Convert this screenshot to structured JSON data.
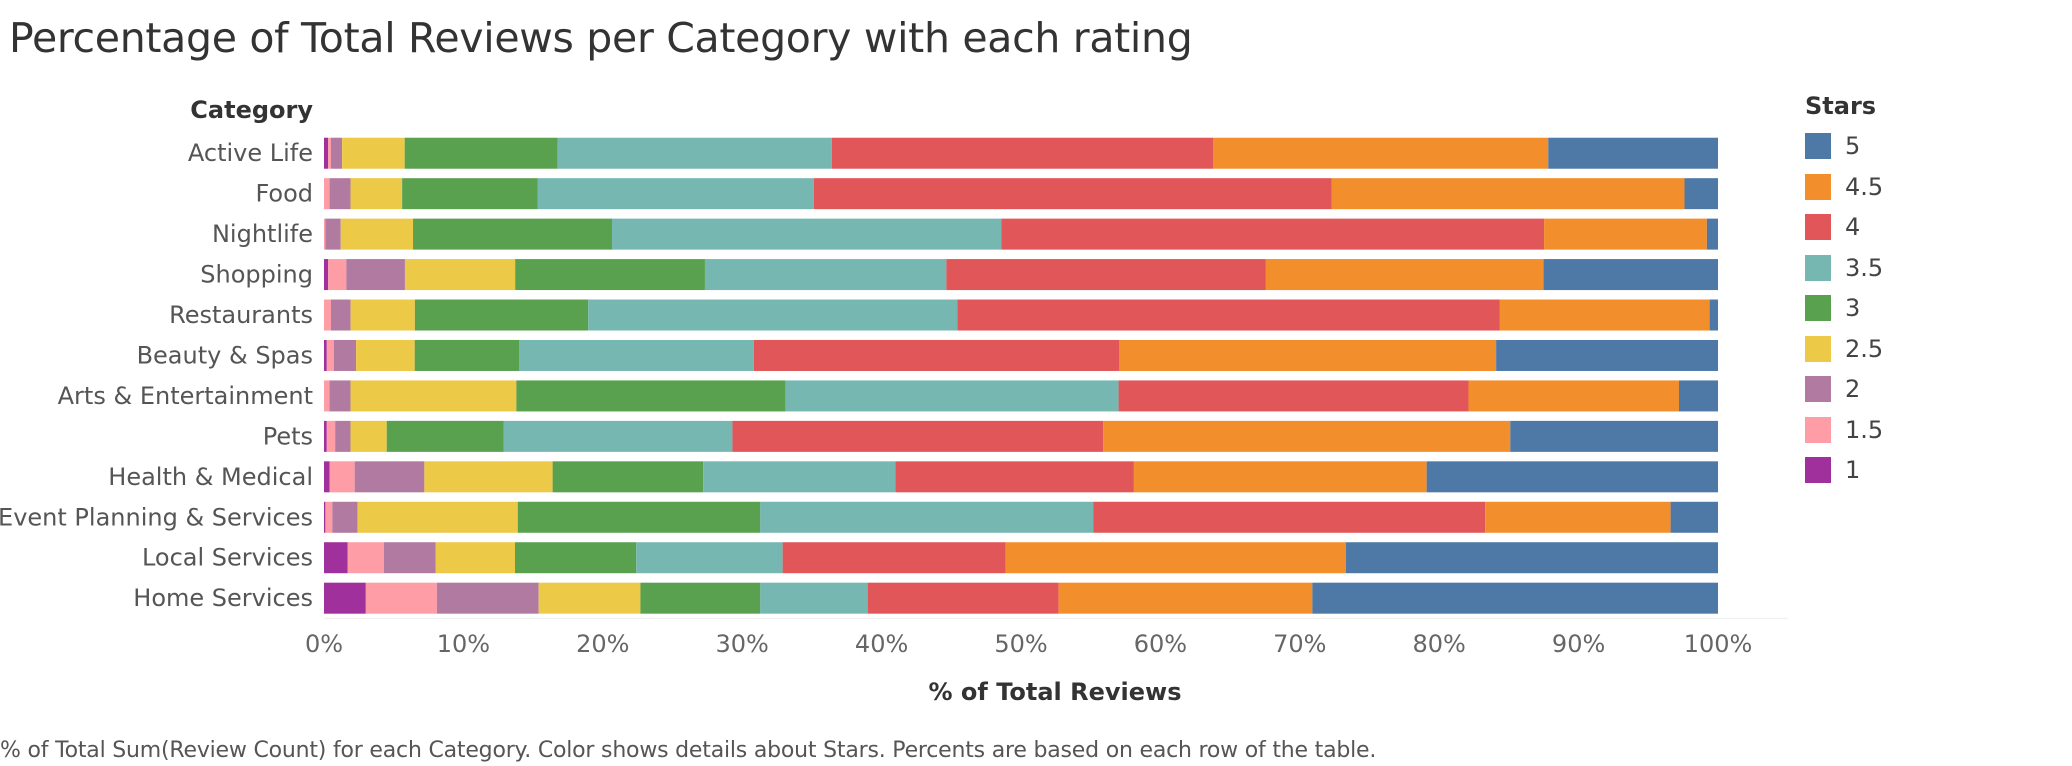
{
  "title": "Percentage of Total Reviews per Category with each rating",
  "footer": "% of Total Sum(Review Count) for each Category.  Color shows details about Stars. Percents are based on each row of the table.",
  "chart_data": {
    "type": "bar",
    "orientation": "horizontal",
    "stacked": "percent",
    "title": "Percentage of Total Reviews per Category with each rating",
    "category_header": "Category",
    "xlabel": "% of Total Reviews",
    "xlim": [
      0,
      100
    ],
    "x_ticks": [
      "0%",
      "10%",
      "20%",
      "30%",
      "40%",
      "50%",
      "60%",
      "70%",
      "80%",
      "90%",
      "100%"
    ],
    "legend": {
      "title": "Stars",
      "placement": "right"
    },
    "categories": [
      "Active Life",
      "Food",
      "Nightlife",
      "Shopping",
      "Restaurants",
      "Beauty & Spas",
      "Arts & Entertainment",
      "Pets",
      "Health & Medical",
      "Event Planning & Services",
      "Local Services",
      "Home Services"
    ],
    "series": [
      {
        "name": "1",
        "color": "#a0309b",
        "values": [
          0.3,
          0.0,
          0.0,
          0.3,
          0.0,
          0.2,
          0.0,
          0.2,
          0.4,
          0.1,
          1.7,
          3.0
        ]
      },
      {
        "name": "1.5",
        "color": "#ff9da7",
        "values": [
          0.2,
          0.4,
          0.1,
          1.3,
          0.5,
          0.5,
          0.4,
          0.6,
          1.8,
          0.5,
          2.6,
          5.1
        ]
      },
      {
        "name": "2",
        "color": "#b07aa1",
        "values": [
          0.8,
          1.5,
          1.1,
          4.2,
          1.4,
          1.6,
          1.5,
          1.1,
          5.0,
          1.8,
          3.7,
          7.3
        ]
      },
      {
        "name": "2.5",
        "color": "#edc948",
        "values": [
          4.5,
          3.7,
          5.2,
          7.9,
          4.6,
          4.2,
          11.9,
          2.6,
          9.2,
          11.5,
          5.7,
          7.3
        ]
      },
      {
        "name": "3",
        "color": "#59a14f",
        "values": [
          11.0,
          9.7,
          14.3,
          13.6,
          12.4,
          7.5,
          19.3,
          8.4,
          10.8,
          17.4,
          8.7,
          8.6
        ]
      },
      {
        "name": "3.5",
        "color": "#76b7b2",
        "values": [
          19.7,
          19.8,
          28.0,
          17.3,
          26.4,
          16.8,
          23.9,
          16.4,
          13.8,
          23.9,
          10.5,
          7.7
        ]
      },
      {
        "name": "4",
        "color": "#e15759",
        "values": [
          27.4,
          37.1,
          39.0,
          22.9,
          38.8,
          26.2,
          25.1,
          26.6,
          17.1,
          28.1,
          16.0,
          13.7
        ]
      },
      {
        "name": "4.5",
        "color": "#f28e2b",
        "values": [
          24.1,
          25.3,
          11.7,
          19.9,
          15.0,
          27.0,
          15.1,
          29.2,
          21.0,
          13.3,
          24.4,
          18.2
        ]
      },
      {
        "name": "5",
        "color": "#4e79a7",
        "values": [
          12.2,
          2.4,
          0.8,
          12.5,
          0.6,
          15.9,
          2.8,
          14.9,
          20.9,
          3.4,
          26.7,
          29.1
        ]
      }
    ]
  }
}
